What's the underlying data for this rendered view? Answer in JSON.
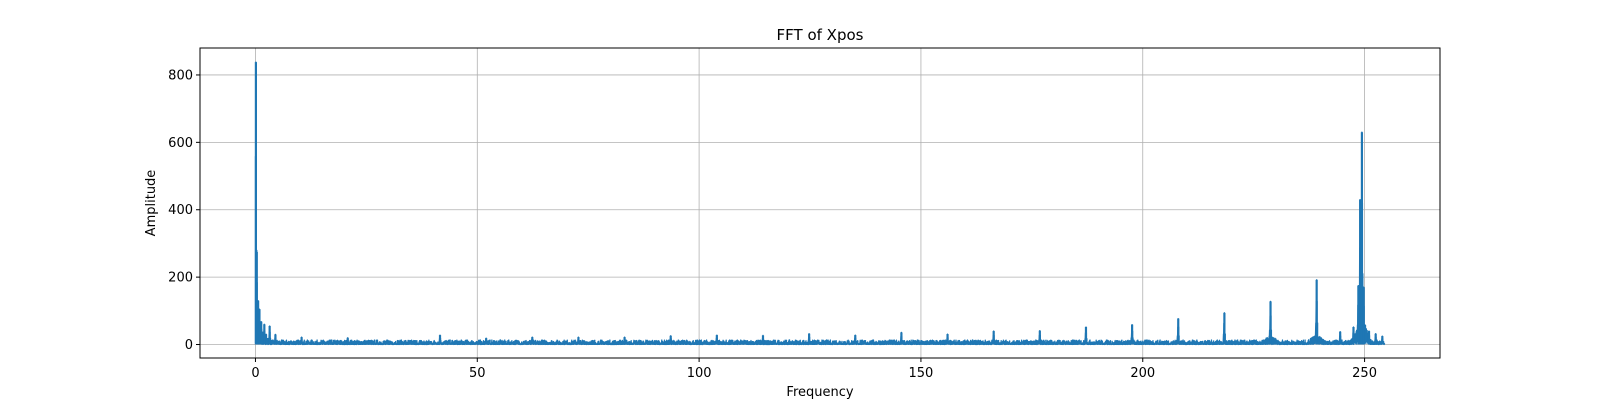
{
  "chart_data": {
    "type": "line",
    "title": "FFT of Xpos",
    "xlabel": "Frequency",
    "ylabel": "Amplitude",
    "xlim": [
      -12.5,
      267
    ],
    "ylim": [
      -40,
      880
    ],
    "xticks": [
      0,
      50,
      100,
      150,
      200,
      250
    ],
    "yticks": [
      0,
      200,
      400,
      600,
      800
    ],
    "grid": true,
    "color": "#1f77b4",
    "baseline": {
      "x_start": 0,
      "x_end": 254.5,
      "amplitude_max": 14
    },
    "peaks": [
      {
        "x": 0.1,
        "y": 838
      },
      {
        "x": 0.3,
        "y": 275
      },
      {
        "x": 0.6,
        "y": 130
      },
      {
        "x": 0.9,
        "y": 105
      },
      {
        "x": 1.3,
        "y": 68
      },
      {
        "x": 2.0,
        "y": 60
      },
      {
        "x": 3.2,
        "y": 55
      },
      {
        "x": 4.5,
        "y": 30
      },
      {
        "x": 10.4,
        "y": 22
      },
      {
        "x": 20.8,
        "y": 20
      },
      {
        "x": 41.6,
        "y": 28
      },
      {
        "x": 52.0,
        "y": 19
      },
      {
        "x": 62.4,
        "y": 22
      },
      {
        "x": 72.8,
        "y": 22
      },
      {
        "x": 83.2,
        "y": 22
      },
      {
        "x": 93.6,
        "y": 26
      },
      {
        "x": 104.0,
        "y": 28
      },
      {
        "x": 114.4,
        "y": 27
      },
      {
        "x": 124.8,
        "y": 32
      },
      {
        "x": 135.2,
        "y": 28
      },
      {
        "x": 145.6,
        "y": 36
      },
      {
        "x": 156.0,
        "y": 31
      },
      {
        "x": 166.4,
        "y": 40
      },
      {
        "x": 176.8,
        "y": 41
      },
      {
        "x": 187.2,
        "y": 52
      },
      {
        "x": 197.6,
        "y": 59
      },
      {
        "x": 208.0,
        "y": 77
      },
      {
        "x": 218.4,
        "y": 94
      },
      {
        "x": 228.8,
        "y": 128
      },
      {
        "x": 239.2,
        "y": 192
      },
      {
        "x": 244.5,
        "y": 38
      },
      {
        "x": 247.5,
        "y": 52
      },
      {
        "x": 248.6,
        "y": 175
      },
      {
        "x": 249.0,
        "y": 430
      },
      {
        "x": 249.4,
        "y": 630
      },
      {
        "x": 249.8,
        "y": 170
      },
      {
        "x": 251.0,
        "y": 40
      },
      {
        "x": 252.5,
        "y": 32
      },
      {
        "x": 254.0,
        "y": 25
      }
    ]
  }
}
